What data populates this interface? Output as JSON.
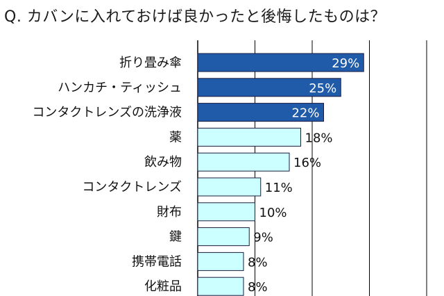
{
  "chart_data": {
    "type": "bar",
    "orientation": "horizontal",
    "title": "Q. カバンに入れておけば良かったと後悔したものは？",
    "categories": [
      "折り畳み傘",
      "ハンカチ・ティッシュ",
      "コンタクトレンズの洗浄液",
      "薬",
      "飲み物",
      "コンタクトレンズ",
      "財布",
      "鍵",
      "携帯電話",
      "化粧品"
    ],
    "values": [
      29,
      25,
      22,
      18,
      16,
      11,
      10,
      9,
      8,
      8
    ],
    "value_labels": [
      "29%",
      "25%",
      "22%",
      "18%",
      "16%",
      "11%",
      "10%",
      "9%",
      "8%",
      "8%"
    ],
    "highlighted": [
      true,
      true,
      true,
      false,
      false,
      false,
      false,
      false,
      false,
      false
    ],
    "unit": "%",
    "xlim": [
      0,
      50
    ],
    "xlabel": "",
    "ylabel": "",
    "grid": "vertical",
    "colors": {
      "highlight_fill": "#1f5ba8",
      "highlight_text": "#ffffff",
      "normal_fill": "#ccffff",
      "normal_text": "#111111",
      "bar_border": "#1a1a40",
      "grid": "#000000"
    }
  }
}
